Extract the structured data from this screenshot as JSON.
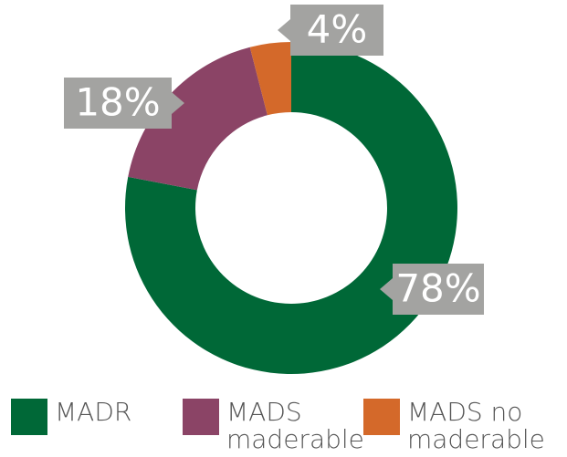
{
  "chart_data": {
    "type": "donut",
    "categories": [
      "MADR",
      "MADS maderable",
      "MADS no maderable"
    ],
    "values": [
      78,
      18,
      4
    ],
    "value_labels": [
      "78%",
      "18%",
      "4%"
    ],
    "colors": [
      "#006837",
      "#8b4466",
      "#d4692a"
    ]
  }
}
